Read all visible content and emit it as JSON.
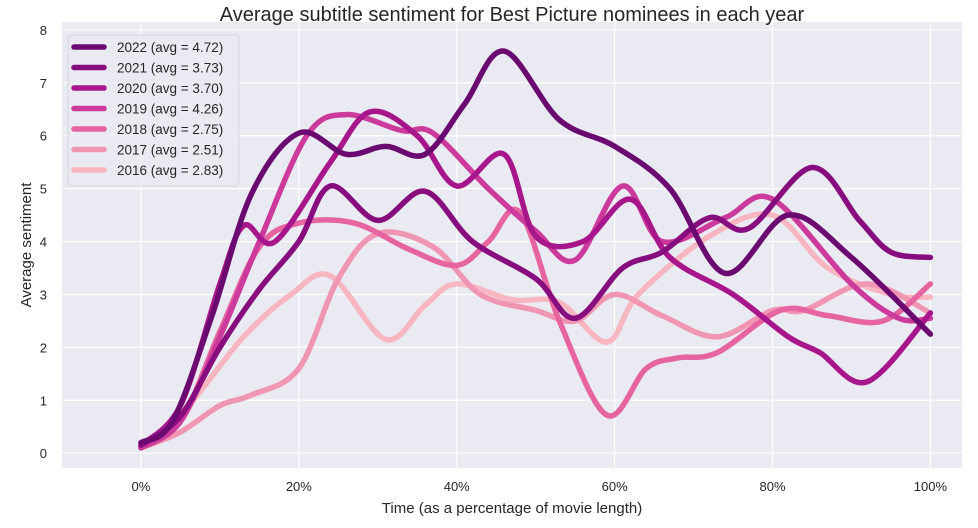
{
  "chart_data": {
    "type": "line",
    "title": "Average subtitle sentiment for Best Picture nominees in each year",
    "xlabel": "Time (as a percentage of movie length)",
    "ylabel": "Average sentiment",
    "xlim": [
      -10,
      104
    ],
    "ylim": [
      -0.28,
      8.15
    ],
    "grid": true,
    "legend_position": "top-left",
    "background_color": "#eaeaf2",
    "x_ticks": [
      0,
      20,
      40,
      60,
      80,
      100
    ],
    "x_tick_labels": [
      "0%",
      "20%",
      "40%",
      "60%",
      "80%",
      "100%"
    ],
    "y_ticks": [
      0,
      1,
      2,
      3,
      4,
      5,
      6,
      7,
      8
    ],
    "y_tick_labels": [
      "0",
      "1",
      "2",
      "3",
      "4",
      "5",
      "6",
      "7",
      "8"
    ],
    "series": [
      {
        "name": "2022 (avg = 4.72)",
        "color": "#6a0a70",
        "x": [
          0,
          4,
          9,
          14,
          20,
          26,
          31,
          36,
          41,
          46,
          53,
          60,
          67,
          74,
          82,
          90,
          100
        ],
        "y": [
          0.2,
          0.6,
          2.6,
          4.9,
          6.05,
          5.65,
          5.8,
          5.65,
          6.6,
          7.6,
          6.3,
          5.8,
          5.0,
          3.4,
          4.5,
          3.7,
          2.25
        ]
      },
      {
        "name": "2021 (avg = 3.73)",
        "color": "#870c7e",
        "x": [
          0,
          5,
          10,
          15,
          20,
          24,
          30,
          36,
          42,
          50,
          55,
          61,
          66,
          72,
          77,
          85,
          91,
          95,
          100
        ],
        "y": [
          0.15,
          0.7,
          2.0,
          3.1,
          4.0,
          5.05,
          4.4,
          4.95,
          4.0,
          3.3,
          2.55,
          3.5,
          3.8,
          4.45,
          4.25,
          5.4,
          4.4,
          3.8,
          3.7
        ]
      },
      {
        "name": "2020 (avg = 3.70)",
        "color": "#a8168c",
        "x": [
          0,
          5,
          10,
          13,
          17,
          24,
          29,
          35,
          40,
          46,
          50,
          56,
          62,
          67,
          75,
          82,
          86,
          92,
          100
        ],
        "y": [
          0.15,
          0.9,
          3.2,
          4.3,
          4.0,
          5.5,
          6.45,
          6.0,
          5.05,
          5.65,
          4.1,
          4.0,
          4.8,
          3.7,
          3.0,
          2.2,
          1.9,
          1.35,
          2.65
        ]
      },
      {
        "name": "2019 (avg = 4.26)",
        "color": "#cc3a9b",
        "x": [
          0,
          5,
          10,
          15,
          21,
          26,
          33,
          37,
          44,
          50,
          55,
          61,
          66,
          74,
          80,
          90,
          96,
          100
        ],
        "y": [
          0.1,
          0.6,
          2.2,
          4.0,
          6.0,
          6.4,
          6.1,
          6.05,
          5.0,
          4.2,
          3.65,
          5.05,
          4.0,
          4.45,
          4.8,
          3.2,
          2.55,
          2.55
        ]
      },
      {
        "name": "2018 (avg = 2.75)",
        "color": "#e6649f",
        "x": [
          0,
          5,
          10,
          15,
          20,
          27,
          34,
          40,
          44,
          48,
          53,
          59,
          64,
          68,
          73,
          81,
          87,
          94,
          100
        ],
        "y": [
          0.1,
          0.6,
          2.3,
          3.9,
          4.35,
          4.35,
          3.85,
          3.55,
          4.0,
          4.55,
          2.5,
          0.72,
          1.6,
          1.8,
          1.9,
          2.7,
          2.6,
          2.5,
          3.2
        ]
      },
      {
        "name": "2017 (avg = 2.51)",
        "color": "#f095b2",
        "x": [
          0,
          5,
          10,
          14,
          20,
          25,
          30,
          37,
          43,
          50,
          55,
          60,
          66,
          73,
          80,
          84,
          92,
          100
        ],
        "y": [
          0.1,
          0.4,
          0.9,
          1.1,
          1.6,
          3.3,
          4.15,
          3.9,
          3.0,
          2.7,
          2.5,
          3.0,
          2.6,
          2.2,
          2.7,
          2.7,
          3.2,
          2.65
        ]
      },
      {
        "name": "2016 (avg = 2.83)",
        "color": "#f8b6c0",
        "x": [
          0,
          6,
          13,
          19,
          24,
          31,
          36,
          40,
          47,
          53,
          59,
          63,
          72,
          80,
          87,
          95,
          100
        ],
        "y": [
          0.1,
          0.9,
          2.2,
          3.0,
          3.35,
          2.15,
          2.8,
          3.2,
          2.9,
          2.85,
          2.1,
          3.0,
          4.1,
          4.5,
          3.5,
          3.0,
          2.95
        ]
      }
    ]
  }
}
